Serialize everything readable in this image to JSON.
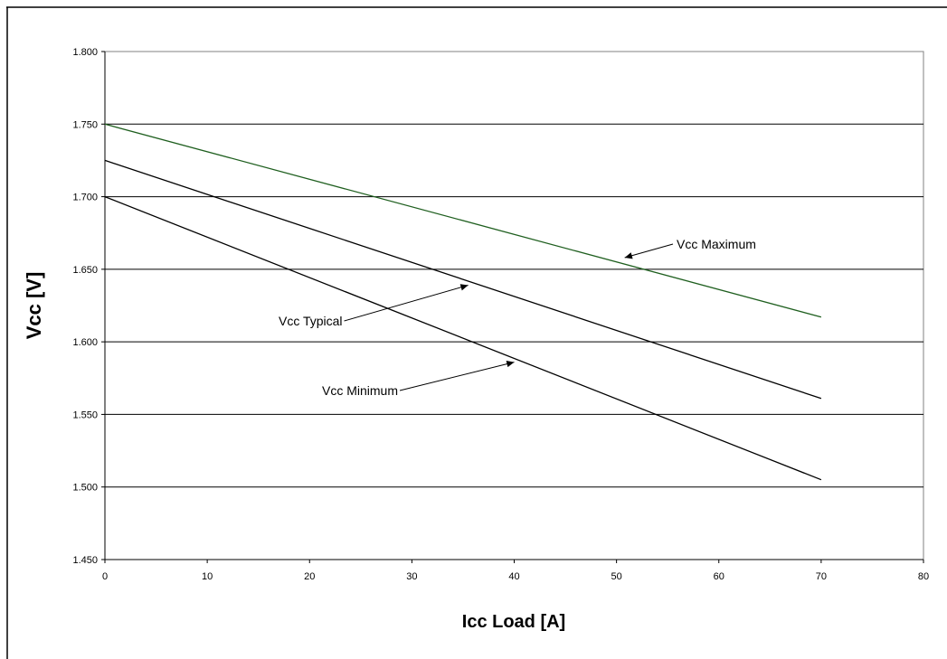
{
  "chart_data": {
    "type": "line",
    "title": "",
    "xlabel": "Icc Load [A]",
    "ylabel": "Vcc [V]",
    "xlim": [
      0,
      80
    ],
    "ylim": [
      1.45,
      1.8
    ],
    "x_ticks": [
      "0",
      "10",
      "20",
      "30",
      "40",
      "50",
      "60",
      "70",
      "80"
    ],
    "y_ticks": [
      "1.450",
      "1.500",
      "1.550",
      "1.600",
      "1.650",
      "1.700",
      "1.750",
      "1.800"
    ],
    "grid": "horizontal",
    "legend": "none",
    "series": [
      {
        "name": "Vcc Maximum",
        "color": "#1f5f1f",
        "x": [
          0,
          70
        ],
        "y": [
          1.75,
          1.617
        ]
      },
      {
        "name": "Vcc Typical",
        "color": "#000000",
        "x": [
          0,
          70
        ],
        "y": [
          1.725,
          1.561
        ]
      },
      {
        "name": "Vcc Minimum",
        "color": "#000000",
        "x": [
          0,
          70
        ],
        "y": [
          1.7,
          1.505
        ]
      }
    ],
    "annotations": [
      {
        "text": "Vcc Maximum",
        "series": "Vcc Maximum",
        "points_to": {
          "x": 50.8,
          "y": 1.658
        }
      },
      {
        "text": "Vcc Typical",
        "series": "Vcc Typical",
        "points_to": {
          "x": 35.5,
          "y": 1.639
        }
      },
      {
        "text": "Vcc Minimum",
        "series": "Vcc Minimum",
        "points_to": {
          "x": 40,
          "y": 1.586
        }
      }
    ]
  }
}
